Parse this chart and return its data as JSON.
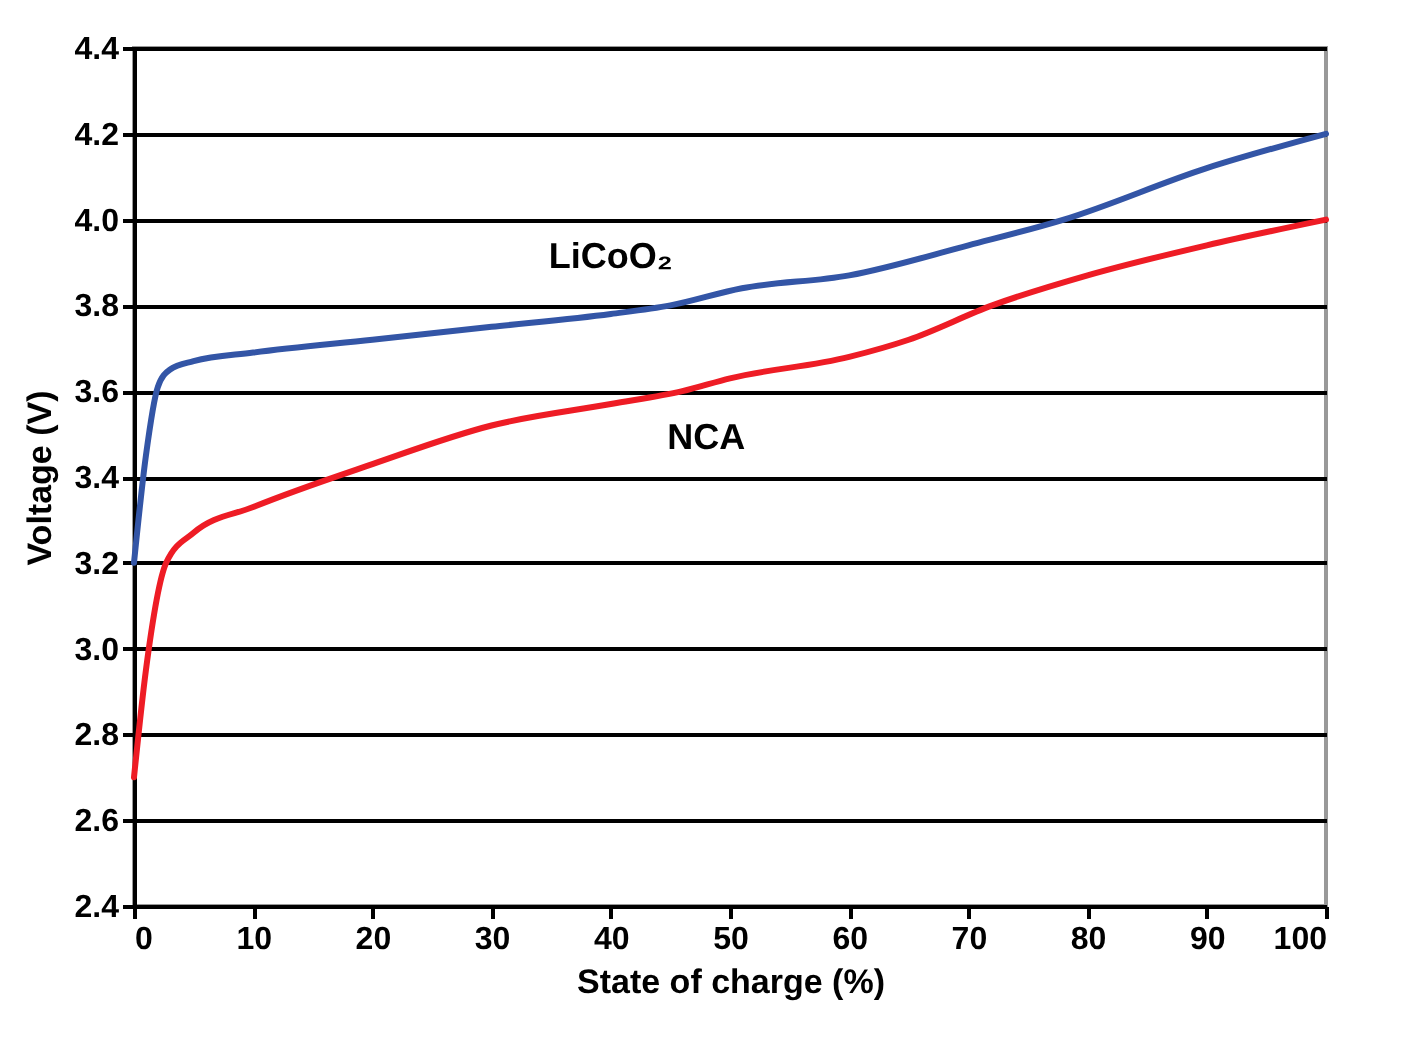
{
  "chart_data": {
    "type": "line",
    "xlabel": "State of charge (%)",
    "ylabel": "Voltage (V)",
    "xlim": [
      0,
      100
    ],
    "xticks": [
      0,
      10,
      20,
      30,
      40,
      50,
      60,
      70,
      80,
      90,
      100
    ],
    "ylim": [
      2.4,
      4.4
    ],
    "yticks": [
      2.4,
      2.6,
      2.8,
      {
        "value": 3,
        "label": "3.0"
      },
      3.2,
      3.4,
      3.6,
      3.8,
      {
        "value": 4,
        "label": "4.0"
      },
      4.2,
      4.4
    ],
    "grid": "y",
    "marker": "none",
    "line_style": "solid",
    "series": [
      {
        "name": "LiCoO₂",
        "color": "#3355a6",
        "x": [
          0,
          1,
          2,
          3,
          5,
          10,
          20,
          30,
          40,
          45,
          51,
          60,
          70,
          78,
          90,
          100
        ],
        "values": [
          3.2,
          3.45,
          3.61,
          3.65,
          3.67,
          3.69,
          3.72,
          3.75,
          3.78,
          3.8,
          3.84,
          3.87,
          3.94,
          4.0,
          4.12,
          4.2
        ]
      },
      {
        "name": "NCA",
        "color": "#ee1c25",
        "x": [
          0,
          1,
          2.7,
          5,
          10,
          20,
          30,
          40,
          46,
          50,
          60,
          65,
          72,
          80,
          90,
          100
        ],
        "values": [
          2.7,
          2.95,
          3.2,
          3.27,
          3.33,
          3.43,
          3.52,
          3.57,
          3.6,
          3.63,
          3.68,
          3.72,
          3.8,
          3.87,
          3.94,
          4.0
        ]
      }
    ]
  }
}
